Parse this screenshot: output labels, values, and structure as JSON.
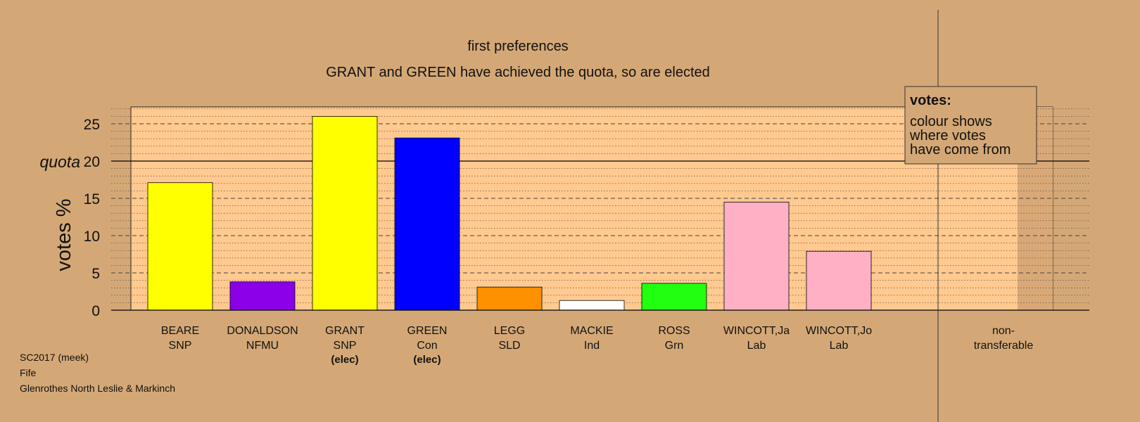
{
  "chart_data": {
    "type": "bar",
    "title": "first preferences",
    "subtitle": "GRANT and GREEN have achieved the quota, so are elected",
    "ylabel": "votes %",
    "xlabel": "",
    "ylim": [
      0,
      27
    ],
    "yticks": [
      0,
      5,
      10,
      15,
      20,
      25
    ],
    "quota": {
      "label": "quota",
      "value": 20
    },
    "grid": true,
    "candidates": [
      {
        "name": "BEARE",
        "party": "SNP",
        "value": 17.1,
        "color": "#FFFF00",
        "note": ""
      },
      {
        "name": "DONALDSON",
        "party": "NFMU",
        "value": 3.8,
        "color": "#8B00E8",
        "note": ""
      },
      {
        "name": "GRANT",
        "party": "SNP",
        "value": 26.0,
        "color": "#FFFF00",
        "note": "(elec)"
      },
      {
        "name": "GREEN",
        "party": "Con",
        "value": 23.1,
        "color": "#0000FF",
        "note": "(elec)"
      },
      {
        "name": "LEGG",
        "party": "SLD",
        "value": 3.1,
        "color": "#FF9000",
        "note": ""
      },
      {
        "name": "MACKIE",
        "party": "Ind",
        "value": 1.3,
        "color": "#FFFFFF",
        "note": ""
      },
      {
        "name": "ROSS",
        "party": "Grn",
        "value": 3.6,
        "color": "#22FF10",
        "note": ""
      },
      {
        "name": "WINCOTT,Ja",
        "party": "Lab",
        "value": 14.5,
        "color": "#FFB0C4",
        "note": ""
      },
      {
        "name": "WINCOTT,Jo",
        "party": "Lab",
        "value": 7.9,
        "color": "#FFB0C4",
        "note": ""
      }
    ],
    "nontransferable": {
      "line1": "non-",
      "line2": "transferable",
      "value": 0
    },
    "legend": {
      "title": "votes:",
      "lines": [
        "colour shows",
        "where votes",
        "have come from"
      ],
      "placement": "top-right"
    }
  },
  "footer": {
    "line1": "SC2017 (meek)",
    "line2": "Fife",
    "line3": "Glenrothes North Leslie & Markinch"
  },
  "colors": {
    "background": "#D4A876",
    "plot_area": "#FFC98F",
    "axis": "#000000"
  }
}
